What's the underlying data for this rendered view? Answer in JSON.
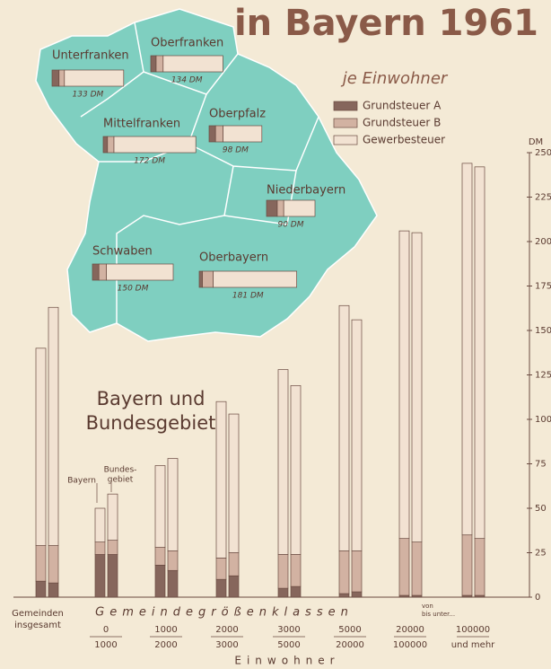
{
  "title": "in Bayern 1961",
  "subtitle": "je Einwohner",
  "map": {
    "regions": [
      {
        "name": "Unterfranken",
        "values": [
          13,
          10,
          110
        ],
        "total": 133,
        "total_label": "133 DM"
      },
      {
        "name": "Oberfranken",
        "values": [
          10,
          13,
          111
        ],
        "total": 134,
        "total_label": "134 DM"
      },
      {
        "name": "Mittelfranken",
        "values": [
          8,
          12,
          152
        ],
        "total": 172,
        "total_label": "172 DM"
      },
      {
        "name": "Oberpfalz",
        "values": [
          12,
          14,
          72
        ],
        "total": 98,
        "total_label": "98 DM"
      },
      {
        "name": "Niederbayern",
        "values": [
          20,
          12,
          58
        ],
        "total": 90,
        "total_label": "90 DM"
      },
      {
        "name": "Schwaben",
        "values": [
          12,
          14,
          124
        ],
        "total": 150,
        "total_label": "150 DM"
      },
      {
        "name": "Oberbayern",
        "values": [
          6,
          20,
          155
        ],
        "total": 181,
        "total_label": "181 DM"
      }
    ]
  },
  "chart_data": {
    "type": "bar",
    "stacked": true,
    "title_lines": [
      "Bayern und",
      "Bundesgebiet"
    ],
    "groups": [
      [
        "Bayern"
      ],
      [
        "Bundes-",
        "gebiet"
      ]
    ],
    "categories": [
      [
        "Gemeinden",
        "insgesamt"
      ],
      [
        "0",
        "1000"
      ],
      [
        "1000",
        "2000"
      ],
      [
        "2000",
        "3000"
      ],
      [
        "3000",
        "5000"
      ],
      [
        "5000",
        "20000"
      ],
      [
        "20000",
        "100000"
      ],
      [
        "100000",
        "und mehr"
      ]
    ],
    "series": [
      {
        "name": "Grundsteuer A",
        "color": "#86665c",
        "values": [
          [
            9,
            24,
            18,
            10,
            5,
            2,
            1,
            1
          ],
          [
            8,
            24,
            15,
            12,
            6,
            3,
            1,
            1
          ]
        ]
      },
      {
        "name": "Grundsteuer B",
        "color": "#d2b2a2",
        "values": [
          [
            20,
            7,
            10,
            12,
            19,
            24,
            32,
            34
          ],
          [
            21,
            8,
            11,
            13,
            18,
            23,
            30,
            32
          ]
        ]
      },
      {
        "name": "Gewerbesteuer",
        "color": "#f2e2d2",
        "values": [
          [
            111,
            19,
            46,
            88,
            104,
            138,
            173,
            209
          ],
          [
            134,
            26,
            52,
            78,
            95,
            130,
            174,
            209
          ]
        ]
      }
    ],
    "y_unit": "DM",
    "ylim": [
      0,
      250
    ],
    "yticks": [
      0,
      25,
      50,
      75,
      100,
      125,
      150,
      175,
      200,
      225,
      250
    ],
    "xlabel": "Gemeindegrößenklassen",
    "xlabel_note": [
      "von",
      "bis unter..."
    ],
    "xlabel2": "Einwohner"
  }
}
